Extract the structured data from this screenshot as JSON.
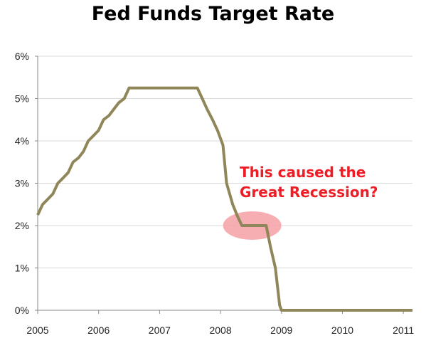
{
  "chart_data": {
    "type": "line",
    "title": "Fed Funds Target Rate",
    "xlabel": "",
    "ylabel": "",
    "xlim": [
      2005.0,
      2011.15
    ],
    "ylim": [
      0,
      6
    ],
    "y_ticks": [
      0,
      1,
      2,
      3,
      4,
      5,
      6
    ],
    "y_tick_labels": [
      "0%",
      "1%",
      "2%",
      "3%",
      "4%",
      "5%",
      "6%"
    ],
    "x_ticks": [
      2005,
      2006,
      2007,
      2008,
      2009,
      2010,
      2011
    ],
    "x_tick_labels": [
      "2005",
      "2006",
      "2007",
      "2008",
      "2009",
      "2010",
      "2011"
    ],
    "grid": "horizontal",
    "legend": "none",
    "series": [
      {
        "color": "#8f8759",
        "points": [
          [
            2005.0,
            2.25
          ],
          [
            2005.08,
            2.5
          ],
          [
            2005.17,
            2.63
          ],
          [
            2005.25,
            2.75
          ],
          [
            2005.33,
            3.0
          ],
          [
            2005.42,
            3.13
          ],
          [
            2005.5,
            3.25
          ],
          [
            2005.58,
            3.5
          ],
          [
            2005.67,
            3.6
          ],
          [
            2005.75,
            3.75
          ],
          [
            2005.83,
            4.0
          ],
          [
            2005.92,
            4.13
          ],
          [
            2006.0,
            4.25
          ],
          [
            2006.08,
            4.5
          ],
          [
            2006.17,
            4.6
          ],
          [
            2006.25,
            4.75
          ],
          [
            2006.33,
            4.9
          ],
          [
            2006.42,
            5.0
          ],
          [
            2006.5,
            5.25
          ],
          [
            2007.0,
            5.25
          ],
          [
            2007.5,
            5.25
          ],
          [
            2007.62,
            5.25
          ],
          [
            2007.7,
            5.0
          ],
          [
            2007.78,
            4.75
          ],
          [
            2007.87,
            4.5
          ],
          [
            2007.95,
            4.25
          ],
          [
            2008.04,
            3.9
          ],
          [
            2008.1,
            3.0
          ],
          [
            2008.2,
            2.5
          ],
          [
            2008.27,
            2.25
          ],
          [
            2008.35,
            2.0
          ],
          [
            2008.75,
            2.0
          ],
          [
            2008.82,
            1.5
          ],
          [
            2008.9,
            1.0
          ],
          [
            2008.97,
            0.12
          ],
          [
            2009.0,
            0.0
          ],
          [
            2011.15,
            0.0
          ]
        ]
      }
    ],
    "annotation": {
      "lines": [
        "This caused the",
        "Great Recession?"
      ],
      "color": "#ee1c25",
      "highlight_color": "#f4a0a4",
      "highlight_center": [
        2008.52,
        2.0
      ]
    }
  }
}
